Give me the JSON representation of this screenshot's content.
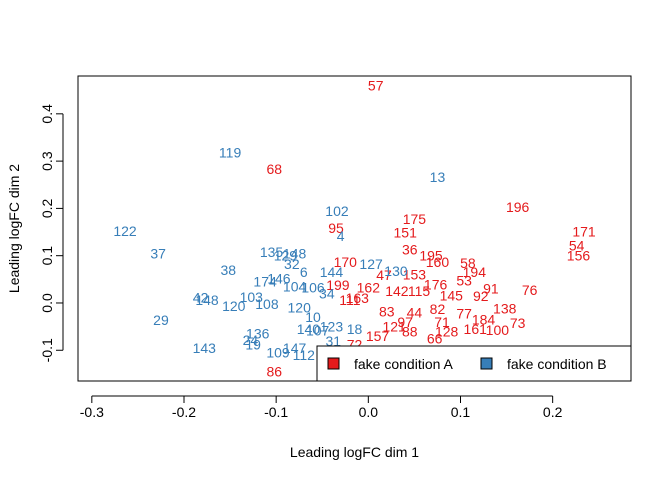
{
  "chart_data": {
    "type": "scatter",
    "title": "",
    "xlabel": "Leading logFC dim 1",
    "ylabel": "Leading logFC dim 2",
    "xlim": [
      -0.315,
      0.285
    ],
    "ylim": [
      -0.165,
      0.48
    ],
    "x_ticks": [
      -0.3,
      -0.2,
      -0.1,
      0.0,
      0.1,
      0.2
    ],
    "x_tick_labels": [
      "-0.3",
      "-0.2",
      "-0.1",
      "0.0",
      "0.1",
      "0.2"
    ],
    "y_ticks": [
      -0.1,
      0.0,
      0.1,
      0.2,
      0.3,
      0.4
    ],
    "y_tick_labels": [
      "-0.1",
      "0.0",
      "0.1",
      "0.2",
      "0.3",
      "0.4"
    ],
    "grid": false,
    "legend_position": "bottom-right",
    "series": [
      {
        "name": "fake condition A",
        "color": "#E41A1C",
        "points": [
          {
            "label": "57",
            "x": 0.008,
            "y": 0.46
          },
          {
            "label": "68",
            "x": -0.102,
            "y": 0.283
          },
          {
            "label": "196",
            "x": 0.162,
            "y": 0.203
          },
          {
            "label": "175",
            "x": 0.05,
            "y": 0.178
          },
          {
            "label": "171",
            "x": 0.234,
            "y": 0.151
          },
          {
            "label": "151",
            "x": 0.04,
            "y": 0.149
          },
          {
            "label": "95",
            "x": -0.035,
            "y": 0.159
          },
          {
            "label": "54",
            "x": 0.226,
            "y": 0.122
          },
          {
            "label": "156",
            "x": 0.228,
            "y": 0.1
          },
          {
            "label": "36",
            "x": 0.045,
            "y": 0.113
          },
          {
            "label": "195",
            "x": 0.068,
            "y": 0.1
          },
          {
            "label": "160",
            "x": 0.075,
            "y": 0.087
          },
          {
            "label": "58",
            "x": 0.108,
            "y": 0.085
          },
          {
            "label": "170",
            "x": -0.025,
            "y": 0.087
          },
          {
            "label": "194",
            "x": 0.115,
            "y": 0.065
          },
          {
            "label": "53",
            "x": 0.104,
            "y": 0.048
          },
          {
            "label": "153",
            "x": 0.05,
            "y": 0.06
          },
          {
            "label": "47",
            "x": 0.017,
            "y": 0.059
          },
          {
            "label": "176",
            "x": 0.073,
            "y": 0.039
          },
          {
            "label": "91",
            "x": 0.133,
            "y": 0.031
          },
          {
            "label": "76",
            "x": 0.175,
            "y": 0.027
          },
          {
            "label": "115",
            "x": 0.055,
            "y": 0.025
          },
          {
            "label": "145",
            "x": 0.09,
            "y": 0.016
          },
          {
            "label": "92",
            "x": 0.122,
            "y": 0.015
          },
          {
            "label": "162",
            "x": 0.0,
            "y": 0.033
          },
          {
            "label": "199",
            "x": -0.033,
            "y": 0.038
          },
          {
            "label": "142",
            "x": 0.031,
            "y": 0.025
          },
          {
            "label": "138",
            "x": 0.148,
            "y": -0.012
          },
          {
            "label": "73",
            "x": 0.162,
            "y": -0.042
          },
          {
            "label": "100",
            "x": 0.14,
            "y": -0.057
          },
          {
            "label": "161",
            "x": 0.116,
            "y": -0.055
          },
          {
            "label": "184",
            "x": 0.125,
            "y": -0.035
          },
          {
            "label": "77",
            "x": 0.104,
            "y": -0.022
          },
          {
            "label": "82",
            "x": 0.075,
            "y": -0.013
          },
          {
            "label": "44",
            "x": 0.05,
            "y": -0.02
          },
          {
            "label": "71",
            "x": 0.08,
            "y": -0.04
          },
          {
            "label": "88",
            "x": 0.045,
            "y": -0.06
          },
          {
            "label": "66",
            "x": 0.072,
            "y": -0.075
          },
          {
            "label": "83",
            "x": 0.02,
            "y": -0.018
          },
          {
            "label": "97",
            "x": 0.04,
            "y": -0.04
          },
          {
            "label": "121",
            "x": 0.028,
            "y": -0.05
          },
          {
            "label": "163",
            "x": -0.012,
            "y": 0.01
          },
          {
            "label": "111",
            "x": -0.02,
            "y": 0.006
          },
          {
            "label": "128",
            "x": 0.085,
            "y": -0.06
          },
          {
            "label": "157",
            "x": 0.01,
            "y": -0.07
          },
          {
            "label": "72",
            "x": -0.015,
            "y": -0.088
          },
          {
            "label": "86",
            "x": -0.102,
            "y": -0.145
          }
        ]
      },
      {
        "name": "fake condition B",
        "color": "#377EB8",
        "points": [
          {
            "label": "119",
            "x": -0.15,
            "y": 0.318
          },
          {
            "label": "13",
            "x": 0.075,
            "y": 0.266
          },
          {
            "label": "102",
            "x": -0.034,
            "y": 0.195
          },
          {
            "label": "122",
            "x": -0.264,
            "y": 0.152
          },
          {
            "label": "4",
            "x": -0.03,
            "y": 0.142
          },
          {
            "label": "37",
            "x": -0.228,
            "y": 0.105
          },
          {
            "label": "135",
            "x": -0.105,
            "y": 0.108
          },
          {
            "label": "148",
            "x": -0.08,
            "y": 0.105
          },
          {
            "label": "129",
            "x": -0.09,
            "y": 0.1
          },
          {
            "label": "32",
            "x": -0.083,
            "y": 0.082
          },
          {
            "label": "38",
            "x": -0.152,
            "y": 0.07
          },
          {
            "label": "6",
            "x": -0.07,
            "y": 0.065
          },
          {
            "label": "144",
            "x": -0.04,
            "y": 0.066
          },
          {
            "label": "127",
            "x": 0.003,
            "y": 0.082
          },
          {
            "label": "130",
            "x": 0.03,
            "y": 0.068
          },
          {
            "label": "146",
            "x": -0.097,
            "y": 0.052
          },
          {
            "label": "174",
            "x": -0.112,
            "y": 0.045
          },
          {
            "label": "104",
            "x": -0.08,
            "y": 0.035
          },
          {
            "label": "106",
            "x": -0.06,
            "y": 0.033
          },
          {
            "label": "42",
            "x": -0.182,
            "y": 0.012
          },
          {
            "label": "148",
            "x": -0.175,
            "y": 0.006
          },
          {
            "label": "103",
            "x": -0.127,
            "y": 0.013
          },
          {
            "label": "120",
            "x": -0.146,
            "y": -0.006
          },
          {
            "label": "108",
            "x": -0.11,
            "y": -0.002
          },
          {
            "label": "34",
            "x": -0.045,
            "y": 0.02
          },
          {
            "label": "29",
            "x": -0.225,
            "y": -0.036
          },
          {
            "label": "120",
            "x": -0.075,
            "y": -0.01
          },
          {
            "label": "143",
            "x": -0.178,
            "y": -0.095
          },
          {
            "label": "24",
            "x": -0.128,
            "y": -0.078
          },
          {
            "label": "136",
            "x": -0.12,
            "y": -0.065
          },
          {
            "label": "19",
            "x": -0.125,
            "y": -0.088
          },
          {
            "label": "109",
            "x": -0.098,
            "y": -0.105
          },
          {
            "label": "147",
            "x": -0.08,
            "y": -0.095
          },
          {
            "label": "112",
            "x": -0.07,
            "y": -0.11
          },
          {
            "label": "140",
            "x": -0.065,
            "y": -0.055
          },
          {
            "label": "107",
            "x": -0.055,
            "y": -0.058
          },
          {
            "label": "123",
            "x": -0.04,
            "y": -0.05
          },
          {
            "label": "31",
            "x": -0.038,
            "y": -0.08
          },
          {
            "label": "18",
            "x": -0.015,
            "y": -0.055
          },
          {
            "label": "10",
            "x": -0.06,
            "y": -0.03
          }
        ]
      }
    ],
    "legend": [
      {
        "label": "fake condition A",
        "color": "#E41A1C"
      },
      {
        "label": "fake condition B",
        "color": "#377EB8"
      }
    ]
  }
}
